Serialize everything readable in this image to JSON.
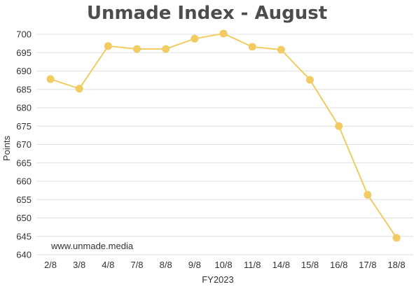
{
  "chart_data": {
    "type": "line",
    "title": "Unmade Index - August",
    "xlabel": "FY2023",
    "ylabel": "Points",
    "categories": [
      "2/8",
      "3/8",
      "4/8",
      "7/8",
      "8/8",
      "9/8",
      "10/8",
      "11/8",
      "14/8",
      "15/8",
      "16/8",
      "17/8",
      "18/8"
    ],
    "series": [
      {
        "values": [
          687.8,
          685.2,
          696.8,
          696.0,
          696.0,
          698.8,
          700.2,
          696.6,
          695.8,
          687.6,
          675.0,
          656.3,
          644.6
        ]
      }
    ],
    "ylim": [
      640,
      700
    ],
    "yticks": [
      640,
      645,
      650,
      655,
      660,
      665,
      670,
      675,
      680,
      685,
      690,
      695,
      700
    ],
    "grid": true,
    "legend": "none",
    "color": "#f2cc62"
  },
  "watermark": "www.unmade.media"
}
